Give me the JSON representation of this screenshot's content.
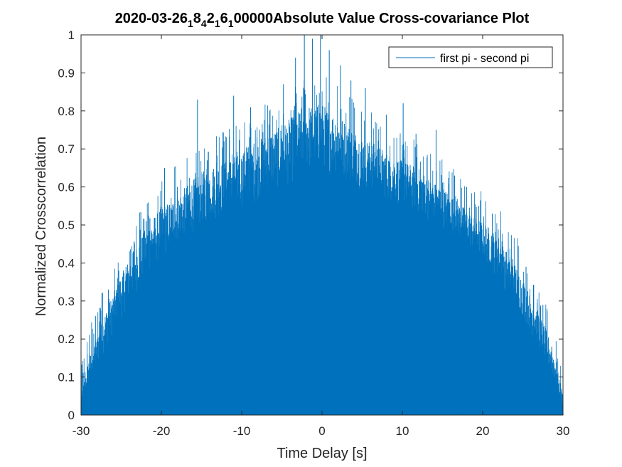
{
  "figure": {
    "title_main": "2020-03-26",
    "title_parts": [
      {
        "base": "",
        "sub": "1"
      },
      {
        "base": "8",
        "sub": "4"
      },
      {
        "base": "2",
        "sub": "1"
      },
      {
        "base": "6",
        "sub": "1"
      }
    ],
    "title_tail": "00000Absolute Value Cross-covariance Plot"
  },
  "chart_data": {
    "type": "area",
    "xlabel": "Time Delay [s]",
    "ylabel": "Normalized Crosscorrelation",
    "xlim": [
      -30,
      30
    ],
    "ylim": [
      0,
      1
    ],
    "xticks": [
      -30,
      -20,
      -10,
      0,
      10,
      20,
      30
    ],
    "yticks": [
      0,
      0.1,
      0.2,
      0.3,
      0.4,
      0.5,
      0.6,
      0.7,
      0.8,
      0.9,
      1
    ],
    "grid": false,
    "legend_position": "top-right",
    "series": [
      {
        "name": "first pi - second pi",
        "color": "#0072BD",
        "description_of_shape": "dense noisy cross-covariance; roughly triangular envelope",
        "x": [
          -30,
          -29,
          -28,
          -27,
          -26,
          -25,
          -24,
          -23,
          -22,
          -21,
          -20,
          -19,
          -18,
          -17,
          -16,
          -15,
          -14,
          -13,
          -12,
          -11,
          -10,
          -9,
          -8,
          -7,
          -6,
          -5,
          -4,
          -3,
          -2,
          -1,
          0,
          1,
          2,
          3,
          4,
          5,
          6,
          7,
          8,
          9,
          10,
          11,
          12,
          13,
          14,
          15,
          16,
          17,
          18,
          19,
          20,
          21,
          22,
          23,
          24,
          25,
          26,
          27,
          28,
          29,
          30
        ],
        "envelope": [
          0.05,
          0.15,
          0.21,
          0.27,
          0.32,
          0.37,
          0.41,
          0.45,
          0.49,
          0.52,
          0.55,
          0.56,
          0.58,
          0.6,
          0.62,
          0.64,
          0.65,
          0.66,
          0.67,
          0.68,
          0.69,
          0.7,
          0.72,
          0.74,
          0.75,
          0.76,
          0.78,
          0.8,
          0.82,
          0.81,
          0.82,
          0.8,
          0.79,
          0.77,
          0.75,
          0.73,
          0.72,
          0.71,
          0.69,
          0.68,
          0.67,
          0.66,
          0.65,
          0.63,
          0.61,
          0.6,
          0.58,
          0.56,
          0.54,
          0.52,
          0.51,
          0.49,
          0.47,
          0.43,
          0.4,
          0.36,
          0.31,
          0.27,
          0.22,
          0.15,
          0.05
        ],
        "floor": [
          0.02,
          0.08,
          0.12,
          0.17,
          0.21,
          0.25,
          0.29,
          0.32,
          0.35,
          0.38,
          0.4,
          0.42,
          0.44,
          0.46,
          0.48,
          0.49,
          0.5,
          0.51,
          0.52,
          0.53,
          0.54,
          0.55,
          0.56,
          0.57,
          0.58,
          0.59,
          0.6,
          0.61,
          0.62,
          0.63,
          0.64,
          0.63,
          0.62,
          0.61,
          0.6,
          0.59,
          0.58,
          0.57,
          0.56,
          0.55,
          0.54,
          0.53,
          0.52,
          0.51,
          0.5,
          0.49,
          0.48,
          0.46,
          0.44,
          0.42,
          0.4,
          0.38,
          0.35,
          0.32,
          0.29,
          0.25,
          0.21,
          0.17,
          0.12,
          0.08,
          0.02
        ],
        "spikes": [
          {
            "x": -28.2,
            "y": 0.26
          },
          {
            "x": -26.6,
            "y": 0.33
          },
          {
            "x": -25.3,
            "y": 0.38
          },
          {
            "x": -24.4,
            "y": 0.39
          },
          {
            "x": -23.5,
            "y": 0.43
          },
          {
            "x": -21.9,
            "y": 0.51
          },
          {
            "x": -19.6,
            "y": 0.65
          },
          {
            "x": -18.0,
            "y": 0.6
          },
          {
            "x": -15.5,
            "y": 0.83
          },
          {
            "x": -14.3,
            "y": 0.67
          },
          {
            "x": -12.2,
            "y": 0.72
          },
          {
            "x": -11.0,
            "y": 0.84
          },
          {
            "x": -8.9,
            "y": 0.81
          },
          {
            "x": -6.5,
            "y": 0.8
          },
          {
            "x": -4.8,
            "y": 0.87
          },
          {
            "x": -3.3,
            "y": 0.94
          },
          {
            "x": -2.2,
            "y": 1.0
          },
          {
            "x": -1.2,
            "y": 0.99
          },
          {
            "x": -0.2,
            "y": 1.0
          },
          {
            "x": 0.9,
            "y": 0.96
          },
          {
            "x": 2.3,
            "y": 0.92
          },
          {
            "x": 3.6,
            "y": 0.88
          },
          {
            "x": 5.4,
            "y": 0.86
          },
          {
            "x": 8.0,
            "y": 0.79
          },
          {
            "x": 10.1,
            "y": 0.82
          },
          {
            "x": 11.7,
            "y": 0.74
          },
          {
            "x": 14.2,
            "y": 0.75
          },
          {
            "x": 16.5,
            "y": 0.63
          },
          {
            "x": 18.0,
            "y": 0.6
          },
          {
            "x": 19.5,
            "y": 0.55
          },
          {
            "x": 21.2,
            "y": 0.53
          },
          {
            "x": 23.7,
            "y": 0.41
          },
          {
            "x": 25.4,
            "y": 0.39
          },
          {
            "x": 27.5,
            "y": 0.29
          },
          {
            "x": 28.6,
            "y": 0.18
          },
          {
            "x": 29.2,
            "y": 0.14
          }
        ]
      }
    ]
  },
  "legend": {
    "label": "first pi - second pi"
  }
}
